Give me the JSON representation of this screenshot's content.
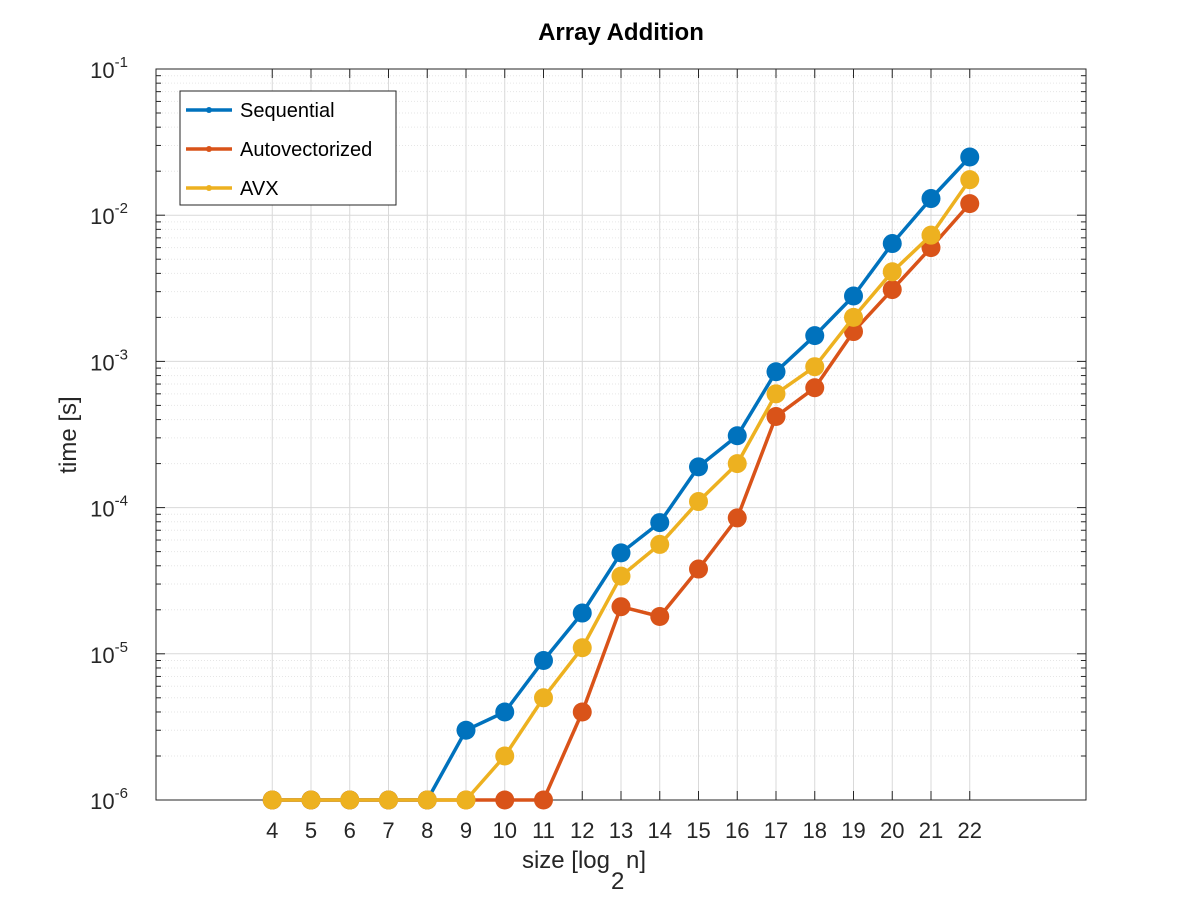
{
  "chart_data": {
    "type": "line",
    "title": "Array Addition",
    "xlabel": "size [log",
    "xlabel_sub": "2",
    "xlabel_tail": "n]",
    "ylabel": "time [s]",
    "yscale": "log",
    "xlim": [
      1,
      25
    ],
    "ylim": [
      1e-06,
      0.1
    ],
    "grid": true,
    "minor_grid": true,
    "legend_position": "top-left",
    "x": [
      4,
      5,
      6,
      7,
      8,
      9,
      10,
      11,
      12,
      13,
      14,
      15,
      16,
      17,
      18,
      19,
      20,
      21,
      22
    ],
    "x_tick_labels": [
      "4",
      "5",
      "6",
      "7",
      "8",
      "9",
      "10",
      "11",
      "12",
      "13",
      "14",
      "15",
      "16",
      "17",
      "18",
      "19",
      "20",
      "21",
      "22"
    ],
    "y_tick_labels": [
      {
        "base": "10",
        "exp": "-6"
      },
      {
        "base": "10",
        "exp": "-5"
      },
      {
        "base": "10",
        "exp": "-4"
      },
      {
        "base": "10",
        "exp": "-3"
      },
      {
        "base": "10",
        "exp": "-2"
      },
      {
        "base": "10",
        "exp": "-1"
      }
    ],
    "series": [
      {
        "name": "Sequential",
        "color": "#0072bd",
        "values": [
          1e-06,
          1e-06,
          1e-06,
          1e-06,
          1e-06,
          3e-06,
          4e-06,
          9e-06,
          1.9e-05,
          4.9e-05,
          7.9e-05,
          0.00019,
          0.00031,
          0.00085,
          0.0015,
          0.0028,
          0.0064,
          0.013,
          0.025
        ]
      },
      {
        "name": "Autovectorized",
        "color": "#d95319",
        "values": [
          1e-06,
          1e-06,
          1e-06,
          1e-06,
          1e-06,
          1e-06,
          1e-06,
          1e-06,
          4e-06,
          2.1e-05,
          1.8e-05,
          3.8e-05,
          8.5e-05,
          0.00042,
          0.00066,
          0.0016,
          0.0031,
          0.006,
          0.012
        ]
      },
      {
        "name": "AVX",
        "color": "#edb120",
        "values": [
          1e-06,
          1e-06,
          1e-06,
          1e-06,
          1e-06,
          1e-06,
          2e-06,
          5e-06,
          1.1e-05,
          3.4e-05,
          5.6e-05,
          0.00011,
          0.0002,
          0.0006,
          0.00092,
          0.002,
          0.0041,
          0.0073,
          0.0175
        ]
      }
    ]
  }
}
